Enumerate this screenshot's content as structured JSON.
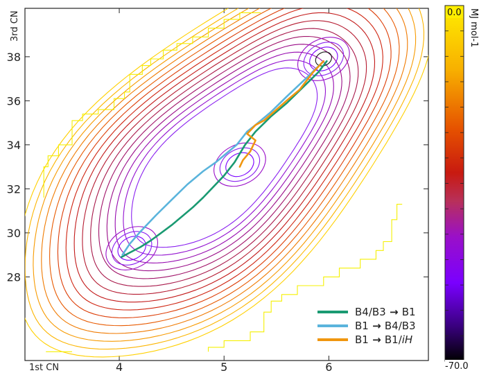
{
  "chart_data": {
    "type": "contour",
    "xlabel": "1st CN",
    "ylabel": "3rd CN",
    "x_ticks": [
      4,
      5,
      6
    ],
    "y_ticks": [
      28,
      30,
      32,
      34,
      36,
      38
    ],
    "xlim": [
      3.1,
      6.95
    ],
    "ylim": [
      24.2,
      40.2
    ],
    "colorbar": {
      "label": "MJ mol-1",
      "max_label": "0.0",
      "min_label": "-70.0",
      "range": [
        -70.0,
        0.0
      ]
    },
    "minima": [
      {
        "x": 4.12,
        "y": 29.3
      },
      {
        "x": 5.15,
        "y": 33.1
      },
      {
        "x": 5.95,
        "y": 37.9
      }
    ],
    "series": [
      {
        "name": "B4/B3→B1",
        "color": "#1a9a72",
        "points": [
          [
            4.02,
            28.9
          ],
          [
            4.1,
            29.1
          ],
          [
            4.2,
            29.35
          ],
          [
            4.3,
            29.65
          ],
          [
            4.4,
            30.0
          ],
          [
            4.5,
            30.35
          ],
          [
            4.6,
            30.75
          ],
          [
            4.7,
            31.15
          ],
          [
            4.8,
            31.6
          ],
          [
            4.9,
            32.1
          ],
          [
            5.0,
            32.6
          ],
          [
            5.1,
            33.2
          ],
          [
            5.2,
            34.0
          ],
          [
            5.3,
            34.6
          ],
          [
            5.45,
            35.3
          ],
          [
            5.6,
            35.9
          ],
          [
            5.75,
            36.6
          ],
          [
            5.9,
            37.3
          ],
          [
            5.98,
            37.8
          ]
        ]
      },
      {
        "name": "B1→B4/B3",
        "color": "#5ab4dc",
        "points": [
          [
            5.95,
            37.8
          ],
          [
            5.8,
            37.1
          ],
          [
            5.6,
            36.2
          ],
          [
            5.45,
            35.5
          ],
          [
            5.3,
            34.9
          ],
          [
            5.22,
            34.6
          ],
          [
            5.12,
            34.0
          ],
          [
            5.02,
            33.6
          ],
          [
            4.92,
            33.2
          ],
          [
            4.8,
            32.8
          ],
          [
            4.65,
            32.2
          ],
          [
            4.5,
            31.5
          ],
          [
            4.35,
            30.8
          ],
          [
            4.2,
            30.05
          ],
          [
            4.1,
            29.5
          ],
          [
            4.03,
            29.0
          ]
        ]
      },
      {
        "name": "B1→B1/iH",
        "color": "#f0960f",
        "points": [
          [
            5.95,
            37.8
          ],
          [
            5.85,
            37.3
          ],
          [
            5.72,
            36.5
          ],
          [
            5.62,
            36.1
          ],
          [
            5.5,
            35.6
          ],
          [
            5.38,
            35.1
          ],
          [
            5.3,
            34.9
          ],
          [
            5.22,
            34.5
          ],
          [
            5.3,
            34.2
          ],
          [
            5.25,
            33.7
          ],
          [
            5.18,
            33.3
          ],
          [
            5.15,
            33.0
          ]
        ]
      }
    ],
    "legend": {
      "placement": "bottom-right",
      "entries": [
        {
          "prefix": "B4/B3",
          "suffix": "B1",
          "italic": ""
        },
        {
          "prefix": "B1",
          "suffix": "B4/B3",
          "italic": ""
        },
        {
          "prefix": "B1",
          "suffix": "B1/",
          "italic": "iH"
        }
      ]
    }
  }
}
